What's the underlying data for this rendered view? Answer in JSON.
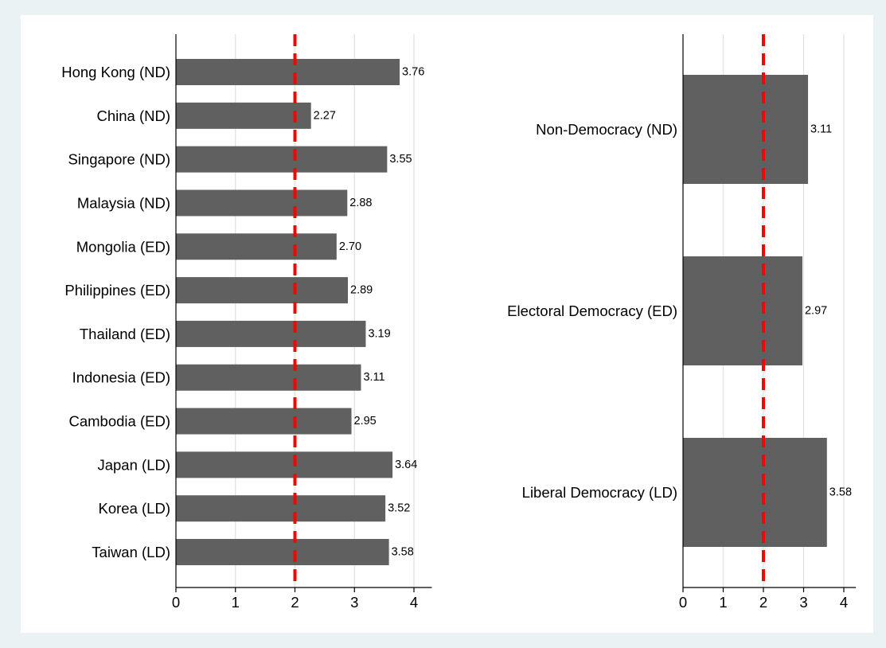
{
  "chart_data": [
    {
      "type": "bar",
      "orientation": "horizontal",
      "categories": [
        "Hong Kong (ND)",
        "China (ND)",
        "Singapore (ND)",
        "Malaysia (ND)",
        "Mongolia (ED)",
        "Philippines (ED)",
        "Thailand (ED)",
        "Indonesia (ED)",
        "Cambodia (ED)",
        "Japan (LD)",
        "Korea (LD)",
        "Taiwan (LD)"
      ],
      "values": [
        3.76,
        2.27,
        3.55,
        2.88,
        2.7,
        2.89,
        3.19,
        3.11,
        2.95,
        3.64,
        3.52,
        3.58
      ],
      "value_labels": [
        "3.76",
        "2.27",
        "3.55",
        "2.88",
        "2.70",
        "2.89",
        "3.19",
        "3.11",
        "2.95",
        "3.64",
        "3.52",
        "3.58"
      ],
      "xlim": [
        0,
        4.3
      ],
      "xticks": [
        0,
        1,
        2,
        3,
        4
      ],
      "reference_line": 2,
      "grid": true,
      "title": "",
      "xlabel": "",
      "ylabel": ""
    },
    {
      "type": "bar",
      "orientation": "horizontal",
      "categories": [
        "Non-Democracy (ND)",
        "Electoral Democracy (ED)",
        "Liberal Democracy (LD)"
      ],
      "values": [
        3.11,
        2.97,
        3.58
      ],
      "value_labels": [
        "3.11",
        "2.97",
        "3.58"
      ],
      "xlim": [
        0,
        4.3
      ],
      "xticks": [
        0,
        1,
        2,
        3,
        4
      ],
      "reference_line": 2,
      "grid": true,
      "title": "",
      "xlabel": "",
      "ylabel": ""
    }
  ],
  "colors": {
    "background": "#eaf2f3",
    "panel": "#ffffff",
    "bar": "#606060",
    "grid": "#e2e2e2",
    "reference_line": "#ff0000",
    "axis": "#000000"
  }
}
